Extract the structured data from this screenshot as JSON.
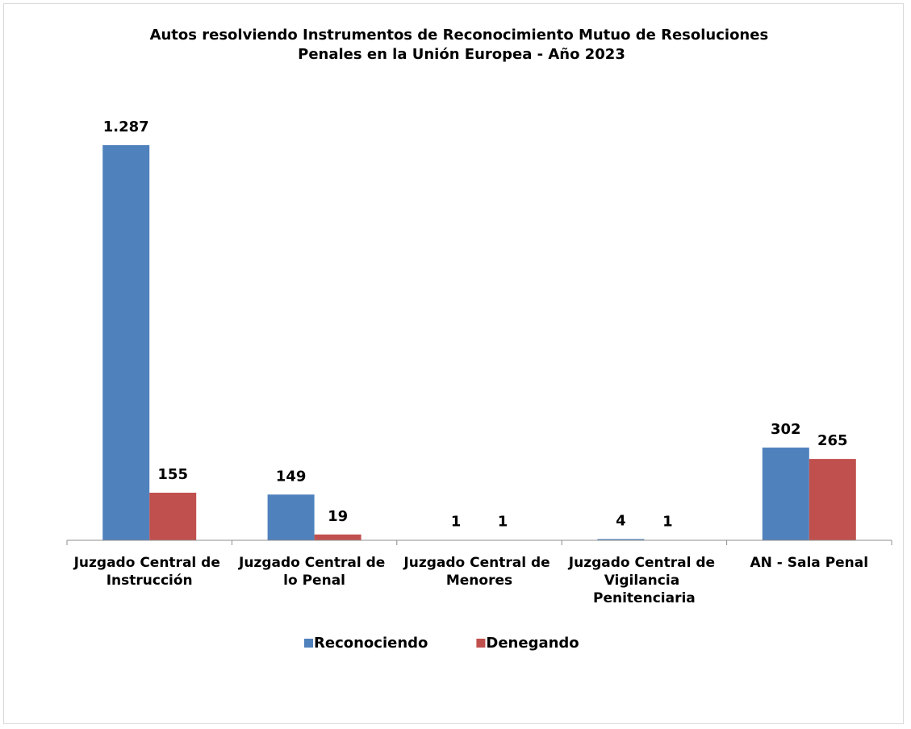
{
  "chart_data": {
    "type": "bar",
    "title": "Autos resolviendo Instrumentos de Reconocimiento Mutuo de Resoluciones Penales en la Unión Europea - Año 2023",
    "categories": [
      "Juzgado Central de Instrucción",
      "Juzgado Central de lo Penal",
      "Juzgado Central de Menores",
      "Juzgado Central de Vigilancia Penitenciaria",
      "AN - Sala Penal"
    ],
    "series": [
      {
        "name": "Reconociendo",
        "color": "#4f81bd",
        "values": [
          1287,
          149,
          1,
          4,
          302
        ],
        "value_labels": [
          "1.287",
          "149",
          "1",
          "4",
          "302"
        ]
      },
      {
        "name": "Denegando",
        "color": "#c0504d",
        "values": [
          155,
          19,
          1,
          1,
          265
        ]
      }
    ],
    "ylim": [
      0,
      1400
    ],
    "legend": "bottom"
  }
}
